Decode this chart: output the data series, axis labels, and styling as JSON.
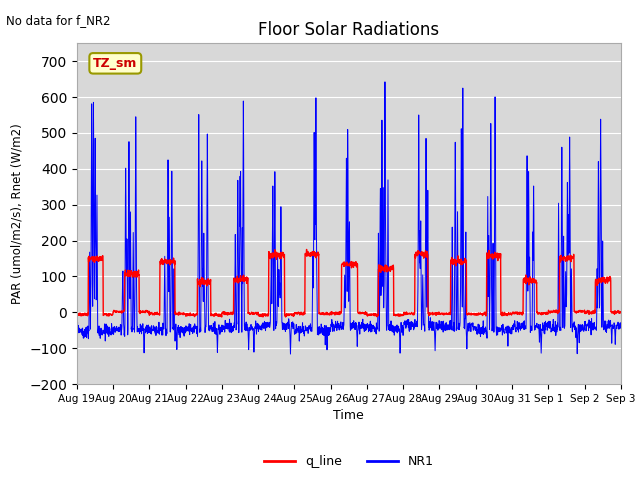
{
  "title": "Floor Solar Radiations",
  "xlabel": "Time",
  "ylabel": "PAR (umol/m2/s), Rnet (W/m2)",
  "annotation": "No data for f_NR2",
  "legend_label": "TZ_sm",
  "ylim": [
    -200,
    750
  ],
  "yticks": [
    -200,
    -100,
    0,
    100,
    200,
    300,
    400,
    500,
    600,
    700
  ],
  "line1_label": "q_line",
  "line1_color": "#ff0000",
  "line2_label": "NR1",
  "line2_color": "#0000ff",
  "bg_color": "#d8d8d8",
  "fig_color": "#ffffff",
  "n_days": 15,
  "start_day": 19,
  "seed": 7
}
